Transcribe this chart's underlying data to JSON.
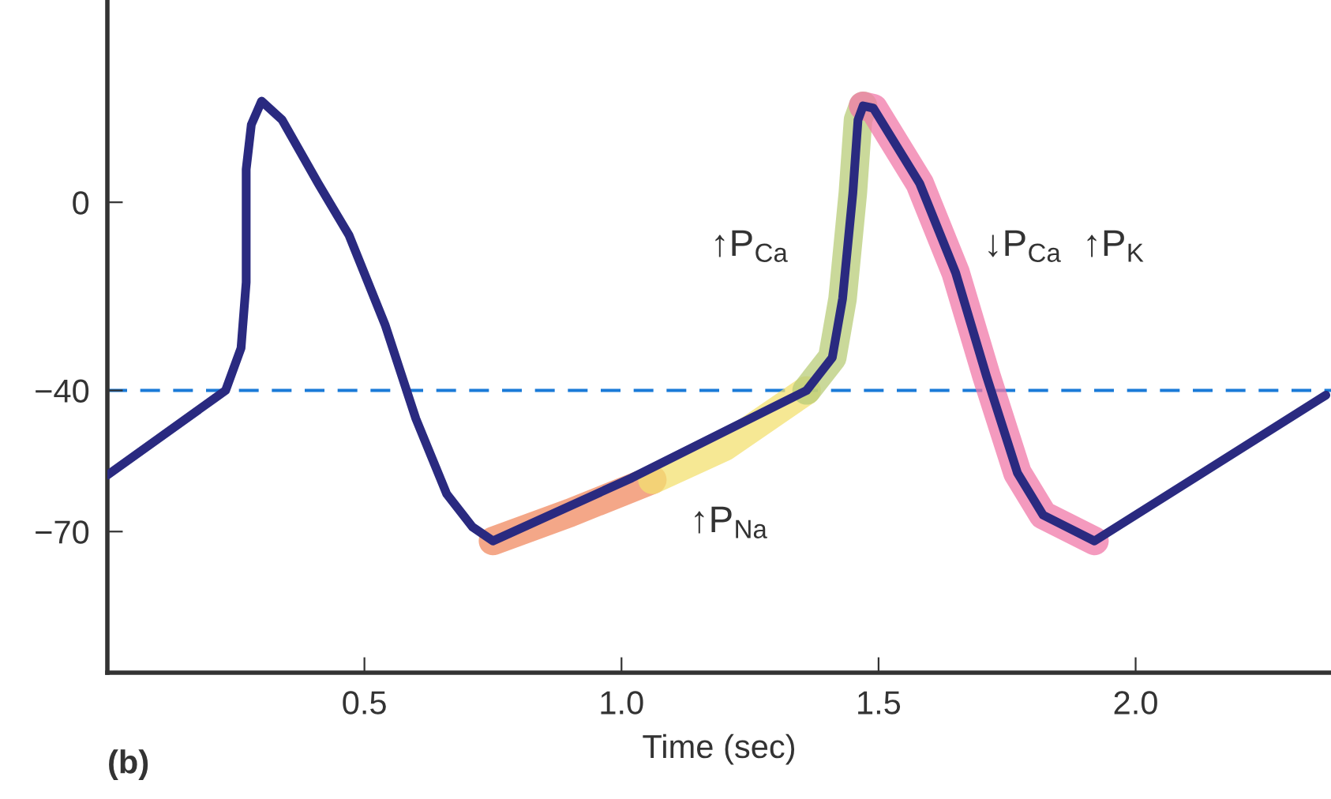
{
  "chart_data": {
    "type": "line",
    "xlabel": "Time (sec)",
    "xlim": [
      0,
      2.38
    ],
    "ylim": [
      -100,
      43
    ],
    "xticks": [
      0.5,
      {
        "value": 1,
        "label": "1.0"
      },
      1.5,
      {
        "value": 2,
        "label": "2.0"
      }
    ],
    "yticks": [
      0,
      {
        "value": -40,
        "label": "−40"
      },
      {
        "value": -70,
        "label": "−70"
      }
    ],
    "grid": false,
    "marker": "none",
    "line_style": "solid",
    "ref_lines": [
      {
        "axis": "y",
        "value": -40,
        "color": "#1a7ad8",
        "line_style": "dashed"
      }
    ],
    "annotations": [
      "↑P$_{Ca}$",
      "↓P$_{Ca}$  ↑P$_{K}$",
      "↑P$_{Na}$",
      "(b)"
    ],
    "series": [
      {
        "color": "#f08a60",
        "x": [
          0.75,
          0.9,
          1.06
        ],
        "values": [
          -72,
          -66,
          -59
        ]
      },
      {
        "color": "#f3e070",
        "x": [
          1.06,
          1.2,
          1.36
        ],
        "values": [
          -59,
          -52,
          -40
        ]
      },
      {
        "color": "#b8cc78",
        "x": [
          1.36,
          1.41,
          1.43,
          1.45,
          1.46,
          1.47
        ],
        "values": [
          -40,
          -33,
          -20.5,
          2,
          17.5,
          20.5
        ]
      },
      {
        "color": "#f078a8",
        "x": [
          1.47,
          1.49,
          1.58,
          1.65,
          1.71,
          1.77,
          1.82,
          1.92
        ],
        "values": [
          20.5,
          20,
          4,
          -15,
          -37,
          -57.5,
          -66.5,
          -72
        ]
      },
      {
        "color": "#2a2a80",
        "x": [
          0,
          0.23,
          0.26,
          0.27,
          0.27,
          0.28,
          0.3,
          0.34,
          0.41,
          0.47,
          0.54,
          0.6,
          0.66,
          0.71,
          0.75,
          1.02,
          1.36,
          1.41,
          1.43,
          1.45,
          1.46,
          1.47,
          1.49,
          1.58,
          1.65,
          1.71,
          1.77,
          1.82,
          1.92,
          2.37
        ],
        "values": [
          -58,
          -40,
          -31,
          -17,
          7,
          16.5,
          21.5,
          17.5,
          4,
          -7,
          -26,
          -46,
          -62,
          -69,
          -72,
          -58.6,
          -40,
          -33,
          -20.5,
          2,
          17.5,
          20.5,
          20,
          4,
          -15,
          -37,
          -57.5,
          -66.5,
          -72,
          -41
        ]
      }
    ]
  }
}
